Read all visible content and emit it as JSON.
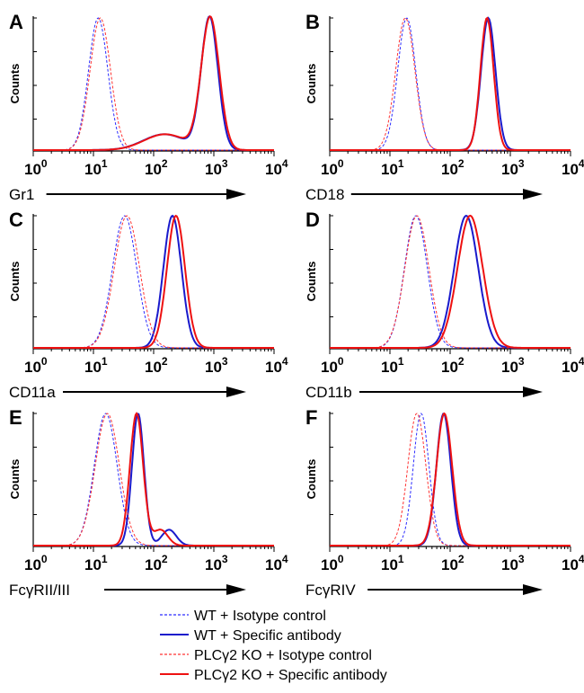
{
  "figure": {
    "counts_label": "Counts",
    "legend": [
      {
        "label": "WT + Isotype control",
        "color": "#2b2bff",
        "dash": true
      },
      {
        "label": "WT + Specific antibody",
        "color": "#1a1acc",
        "dash": false
      },
      {
        "label": "PLCγ2 KO + Isotype control",
        "color": "#ff3333",
        "dash": true
      },
      {
        "label": "PLCγ2 KO + Specific antibody",
        "color": "#ee1111",
        "dash": false
      }
    ]
  },
  "chart_data": [
    {
      "type": "line",
      "panel": "A",
      "xlabel": "Gr1",
      "xscale": "log",
      "xlim": [
        1,
        10000
      ],
      "x_ticks": [
        {
          "base": "10",
          "exp": "0"
        },
        {
          "base": "10",
          "exp": "1"
        },
        {
          "base": "10",
          "exp": "2"
        },
        {
          "base": "10",
          "exp": "3"
        },
        {
          "base": "10",
          "exp": "4"
        }
      ],
      "ylabel": "Counts",
      "series": [
        {
          "name": "WT + Isotype control",
          "peak": 12,
          "width": 0.16
        },
        {
          "name": "WT + Specific antibody",
          "peak": 850,
          "width": 0.14,
          "shoulder": true
        },
        {
          "name": "PLCγ2 KO + Isotype control",
          "peak": 13,
          "width": 0.17
        },
        {
          "name": "PLCγ2 KO + Specific antibody",
          "peak": 870,
          "width": 0.15,
          "shoulder": true
        }
      ]
    },
    {
      "type": "line",
      "panel": "B",
      "xlabel": "CD18",
      "xscale": "log",
      "xlim": [
        1,
        10000
      ],
      "x_ticks": [
        {
          "base": "10",
          "exp": "0"
        },
        {
          "base": "10",
          "exp": "1"
        },
        {
          "base": "10",
          "exp": "2"
        },
        {
          "base": "10",
          "exp": "3"
        },
        {
          "base": "10",
          "exp": "4"
        }
      ],
      "ylabel": "Counts",
      "series": [
        {
          "name": "WT + Isotype control",
          "peak": 19,
          "width": 0.15
        },
        {
          "name": "WT + Specific antibody",
          "peak": 430,
          "width": 0.12
        },
        {
          "name": "PLCγ2 KO + Isotype control",
          "peak": 18,
          "width": 0.16
        },
        {
          "name": "PLCγ2 KO + Specific antibody",
          "peak": 410,
          "width": 0.11
        }
      ]
    },
    {
      "type": "line",
      "panel": "C",
      "xlabel": "CD11a",
      "xscale": "log",
      "xlim": [
        1,
        10000
      ],
      "x_ticks": [
        {
          "base": "10",
          "exp": "0"
        },
        {
          "base": "10",
          "exp": "1"
        },
        {
          "base": "10",
          "exp": "2"
        },
        {
          "base": "10",
          "exp": "3"
        },
        {
          "base": "10",
          "exp": "4"
        }
      ],
      "ylabel": "Counts",
      "series": [
        {
          "name": "WT + Isotype control",
          "peak": 33,
          "width": 0.2
        },
        {
          "name": "WT + Specific antibody",
          "peak": 205,
          "width": 0.15
        },
        {
          "name": "PLCγ2 KO + Isotype control",
          "peak": 36,
          "width": 0.21
        },
        {
          "name": "PLCγ2 KO + Specific antibody",
          "peak": 235,
          "width": 0.15
        }
      ]
    },
    {
      "type": "line",
      "panel": "D",
      "xlabel": "CD11b",
      "xscale": "log",
      "xlim": [
        1,
        10000
      ],
      "x_ticks": [
        {
          "base": "10",
          "exp": "0"
        },
        {
          "base": "10",
          "exp": "1"
        },
        {
          "base": "10",
          "exp": "2"
        },
        {
          "base": "10",
          "exp": "3"
        },
        {
          "base": "10",
          "exp": "4"
        }
      ],
      "ylabel": "Counts",
      "series": [
        {
          "name": "WT + Isotype control",
          "peak": 27,
          "width": 0.19
        },
        {
          "name": "WT + Specific antibody",
          "peak": 185,
          "width": 0.2
        },
        {
          "name": "PLCγ2 KO + Isotype control",
          "peak": 28,
          "width": 0.2
        },
        {
          "name": "PLCγ2 KO + Specific antibody",
          "peak": 215,
          "width": 0.21
        }
      ]
    },
    {
      "type": "line",
      "panel": "E",
      "xlabel": "FcγRII/III",
      "xscale": "log",
      "xlim": [
        1,
        10000
      ],
      "x_ticks": [
        {
          "base": "10",
          "exp": "0"
        },
        {
          "base": "10",
          "exp": "1"
        },
        {
          "base": "10",
          "exp": "2"
        },
        {
          "base": "10",
          "exp": "3"
        },
        {
          "base": "10",
          "exp": "4"
        }
      ],
      "ylabel": "Counts",
      "series": [
        {
          "name": "WT + Isotype control",
          "peak": 16,
          "width": 0.19
        },
        {
          "name": "WT + Specific antibody",
          "peak": 55,
          "width": 0.1,
          "bump": 180
        },
        {
          "name": "PLCγ2 KO + Isotype control",
          "peak": 17,
          "width": 0.2
        },
        {
          "name": "PLCγ2 KO + Specific antibody",
          "peak": 52,
          "width": 0.11,
          "bump": 130
        }
      ]
    },
    {
      "type": "line",
      "panel": "F",
      "xlabel": "FcγRIV",
      "xscale": "log",
      "xlim": [
        1,
        10000
      ],
      "x_ticks": [
        {
          "base": "10",
          "exp": "0"
        },
        {
          "base": "10",
          "exp": "1"
        },
        {
          "base": "10",
          "exp": "2"
        },
        {
          "base": "10",
          "exp": "3"
        },
        {
          "base": "10",
          "exp": "4"
        }
      ],
      "ylabel": "Counts",
      "series": [
        {
          "name": "WT + Isotype control",
          "peak": 33,
          "width": 0.13
        },
        {
          "name": "WT + Specific antibody",
          "peak": 78,
          "width": 0.12
        },
        {
          "name": "PLCγ2 KO + Isotype control",
          "peak": 28,
          "width": 0.15
        },
        {
          "name": "PLCγ2 KO + Specific antibody",
          "peak": 80,
          "width": 0.13
        }
      ]
    }
  ]
}
